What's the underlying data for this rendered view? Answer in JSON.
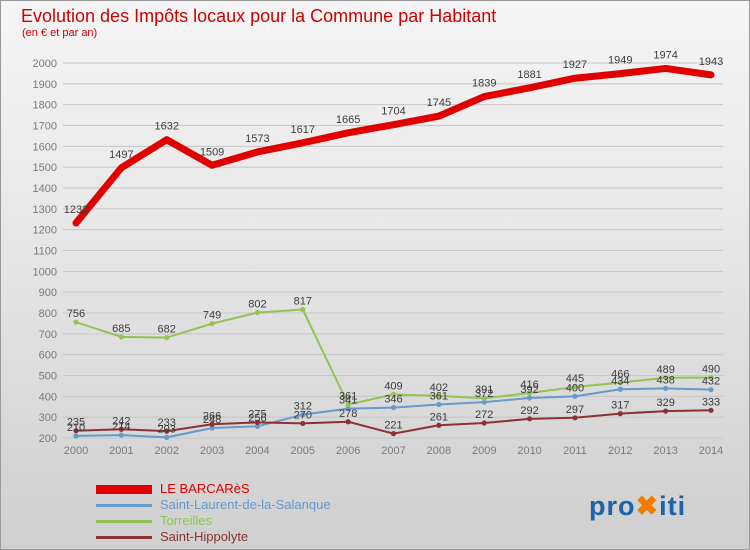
{
  "title": "Evolution des Impôts locaux pour la Commune par Habitant",
  "subtitle": "(en € et par an)",
  "colors": {
    "title": "#cf0000",
    "axis_text": "#7a7a7a",
    "gridline": "#c6c6c6",
    "point_label": "#3c3c3c"
  },
  "chart_data": {
    "type": "line",
    "title": "Evolution des Impôts locaux pour la Commune par Habitant",
    "subtitle": "(en € et par an)",
    "x": [
      2000,
      2001,
      2002,
      2003,
      2004,
      2005,
      2006,
      2007,
      2008,
      2009,
      2010,
      2011,
      2012,
      2013,
      2014
    ],
    "ylim": [
      200,
      2000
    ],
    "ytick_step": 100,
    "grid": true,
    "legend_position": "bottom-left",
    "series": [
      {
        "name": "LE BARCARèS",
        "color": "#e10000",
        "thick": true,
        "values": [
          1232,
          1497,
          1632,
          1509,
          1573,
          1617,
          1665,
          1704,
          1745,
          1839,
          1881,
          1927,
          1949,
          1974,
          1943
        ]
      },
      {
        "name": "Saint-Laurent-de-la-Salanque",
        "color": "#6699cc",
        "thick": false,
        "values": [
          210,
          214,
          203,
          248,
          256,
          312,
          341,
          346,
          361,
          372,
          392,
          400,
          434,
          438,
          432
        ]
      },
      {
        "name": "Torreilles",
        "color": "#92c353",
        "thick": false,
        "values": [
          756,
          685,
          682,
          749,
          802,
          817,
          361,
          409,
          402,
          391,
          416,
          445,
          466,
          489,
          490
        ]
      },
      {
        "name": "Saint-Hippolyte",
        "color": "#8b3232",
        "thick": false,
        "values": [
          235,
          242,
          233,
          266,
          275,
          270,
          278,
          221,
          261,
          272,
          292,
          297,
          317,
          329,
          333
        ]
      }
    ]
  },
  "logo": {
    "parts": [
      {
        "text": "pro",
        "color": "#1b63ac"
      },
      {
        "text": "✖",
        "color": "#f07d00"
      },
      {
        "text": "iti",
        "color": "#1b63ac"
      }
    ]
  }
}
